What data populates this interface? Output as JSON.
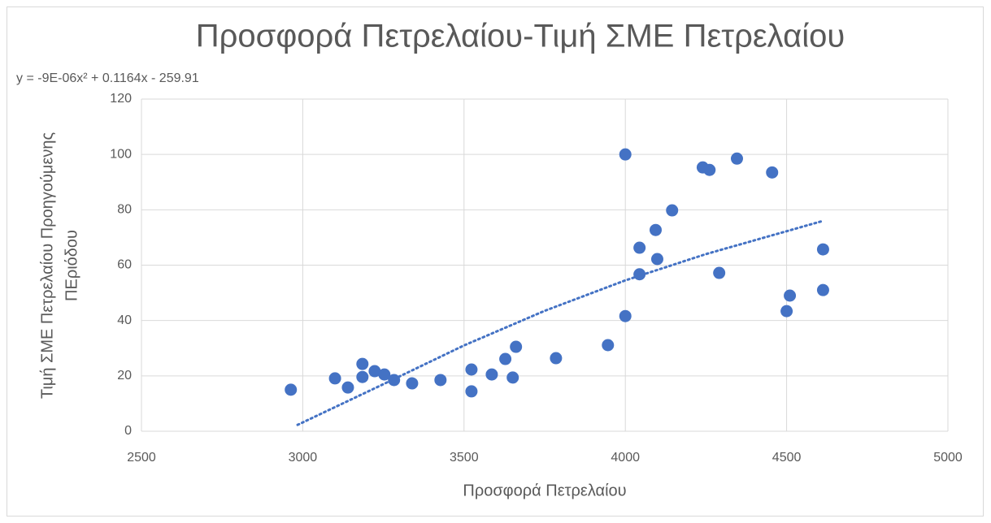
{
  "chart_data": {
    "type": "scatter",
    "title": "Προσφορά Πετρελαίου-Τιμή ΣΜΕ Πετρελαίου",
    "xlabel": "Προσφορά Πετρελαίου",
    "ylabel": [
      "Τιμή ΣΜΕ Πετρελαίου Προηγούμενης",
      "ΠΕριόδου"
    ],
    "series": [
      {
        "color": "#4472c4",
        "x": [
          2963,
          3100,
          3140,
          3185,
          3185,
          3223,
          3253,
          3283,
          3339,
          3427,
          3523,
          3523,
          3586,
          3628,
          3651,
          3661,
          3785,
          3946,
          4000,
          4000,
          4044,
          4044,
          4094,
          4099,
          4145,
          4240,
          4261,
          4291,
          4346,
          4455,
          4500,
          4510,
          4613,
          4613
        ],
        "values": [
          15.0,
          19.1,
          15.8,
          24.3,
          19.6,
          21.7,
          20.5,
          18.5,
          17.3,
          18.5,
          22.3,
          14.4,
          20.5,
          26.1,
          19.4,
          30.5,
          26.4,
          31.1,
          100,
          41.6,
          56.7,
          66.3,
          72.7,
          62.2,
          79.8,
          95.3,
          94.4,
          57.2,
          98.5,
          93.5,
          43.4,
          49.0,
          65.7,
          51.0
        ]
      }
    ],
    "trendline": {
      "label": "y = -9E-06x² + 0.1164x - 259.91",
      "color": "#4472c4",
      "x": [
        2984,
        3250,
        3500,
        3750,
        4000,
        4250,
        4613
      ],
      "values": [
        2.3,
        17,
        31,
        43.5,
        54.5,
        64,
        76
      ]
    },
    "xlim": [
      2500,
      5000
    ],
    "xticks": [
      2500,
      3000,
      3500,
      4000,
      4500,
      5000
    ],
    "ylim": [
      0,
      120
    ],
    "yticks": [
      0,
      20,
      40,
      60,
      80,
      100,
      120
    ],
    "grid": true
  }
}
